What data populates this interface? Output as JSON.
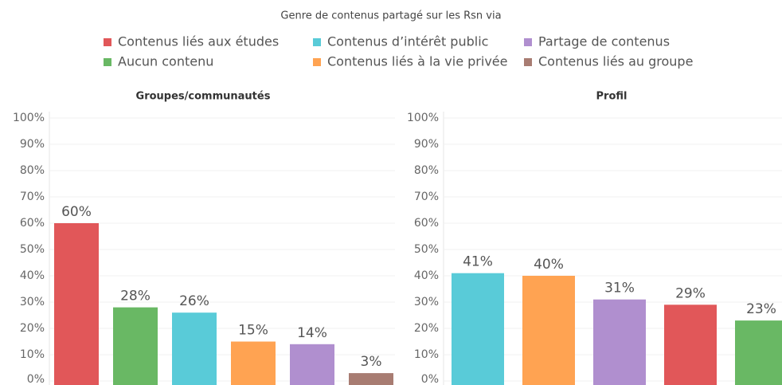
{
  "title": "Genre de contenus partagé sur les Rsn via",
  "legend": [
    {
      "name": "Contenus liés aux études",
      "color": "#e15759"
    },
    {
      "name": "Contenus d’intérêt public",
      "color": "#59cbd8"
    },
    {
      "name": "Partage de contenus",
      "color": "#b08fcf"
    },
    {
      "name": "Aucun contenu",
      "color": "#69b864"
    },
    {
      "name": "Contenus liés à la vie privée",
      "color": "#ffa352"
    },
    {
      "name": "Contenus liés au groupe",
      "color": "#a87c72"
    }
  ],
  "chart_data": [
    {
      "type": "bar",
      "title": "Groupes/communautés",
      "values": [
        60,
        28,
        26,
        15,
        14,
        3
      ],
      "value_labels": [
        "60%",
        "28%",
        "26%",
        "15%",
        "14%",
        "3%"
      ],
      "colors": [
        "#e15759",
        "#69b864",
        "#59cbd8",
        "#ffa352",
        "#b08fcf",
        "#a87c72"
      ],
      "ylim": [
        0,
        100
      ],
      "yticks": [
        {
          "value": 0,
          "label": "0%"
        },
        {
          "value": 10,
          "label": "10%"
        },
        {
          "value": 20,
          "label": "20%"
        },
        {
          "value": 30,
          "label": "30%"
        },
        {
          "value": 40,
          "label": "40%"
        },
        {
          "value": 50,
          "label": "50%"
        },
        {
          "value": 60,
          "label": "60%"
        },
        {
          "value": 70,
          "label": "70%"
        },
        {
          "value": 80,
          "label": "80%"
        },
        {
          "value": 90,
          "label": "90%"
        },
        {
          "value": 100,
          "label": "100%"
        }
      ],
      "grid": true
    },
    {
      "type": "bar",
      "title": "Profil",
      "values": [
        41,
        40,
        31,
        29,
        23
      ],
      "value_labels": [
        "41%",
        "40%",
        "31%",
        "29%",
        "23%"
      ],
      "colors": [
        "#59cbd8",
        "#ffa352",
        "#b08fcf",
        "#e15759",
        "#69b864"
      ],
      "ylim": [
        0,
        100
      ],
      "yticks": [
        {
          "value": 0,
          "label": "0%"
        },
        {
          "value": 10,
          "label": "10%"
        },
        {
          "value": 20,
          "label": "20%"
        },
        {
          "value": 30,
          "label": "30%"
        },
        {
          "value": 40,
          "label": "40%"
        },
        {
          "value": 50,
          "label": "50%"
        },
        {
          "value": 60,
          "label": "60%"
        },
        {
          "value": 70,
          "label": "70%"
        },
        {
          "value": 80,
          "label": "80%"
        },
        {
          "value": 90,
          "label": "90%"
        },
        {
          "value": 100,
          "label": "100%"
        }
      ],
      "grid": true
    }
  ]
}
